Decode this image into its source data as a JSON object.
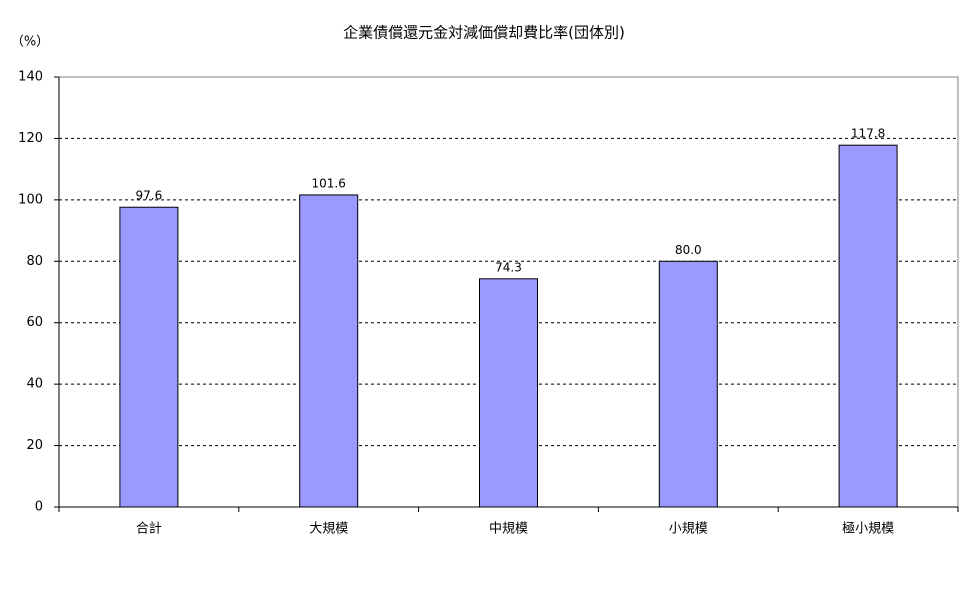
{
  "chart_data": {
    "type": "bar",
    "title": "企業債償還元金対減価償却費比率(団体別)",
    "y_label": "（%）",
    "categories": [
      "合計",
      "大規模",
      "中規模",
      "小規模",
      "極小規模"
    ],
    "values": [
      97.6,
      101.6,
      74.3,
      80.0,
      117.8
    ],
    "value_labels": [
      "97.6",
      "101.6",
      "74.3",
      "80.0",
      "117.8"
    ],
    "color": "#9999ff",
    "ylim": [
      0,
      140
    ],
    "yticks": [
      0,
      20,
      40,
      60,
      80,
      100,
      120,
      140
    ],
    "grid": true
  }
}
